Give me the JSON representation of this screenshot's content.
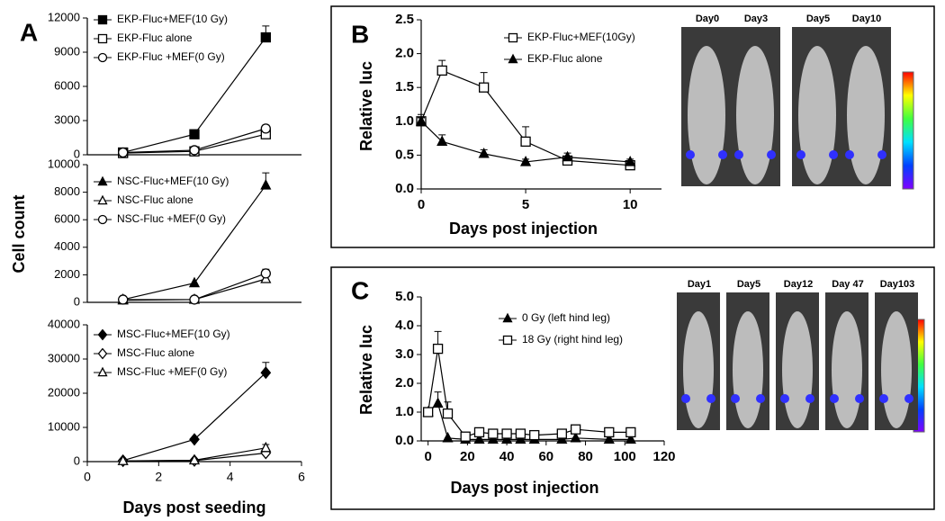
{
  "chart_data": [
    {
      "type": "line",
      "panel": "A",
      "xlim": [
        0,
        6
      ],
      "ylim": [
        0,
        12000
      ],
      "yticks": [
        0,
        3000,
        6000,
        9000,
        12000
      ],
      "x": [
        1,
        3,
        5
      ],
      "series": [
        {
          "name": "EKP-Fluc+MEF(10 Gy)",
          "color": "#000000",
          "marker": "square",
          "filled": true,
          "values": [
            200,
            1800,
            10300
          ],
          "errors": [
            null,
            null,
            1000
          ]
        },
        {
          "name": "EKP-Fluc alone",
          "color": "#000000",
          "marker": "square",
          "filled": false,
          "values": [
            150,
            300,
            1800
          ],
          "errors": [
            null,
            null,
            300
          ]
        },
        {
          "name": "EKP-Fluc +MEF(0 Gy)",
          "color": "#000000",
          "marker": "circle",
          "filled": false,
          "values": [
            200,
            400,
            2300
          ],
          "errors": [
            null,
            null,
            300
          ]
        }
      ]
    },
    {
      "type": "line",
      "xlim": [
        0,
        6
      ],
      "ylim": [
        0,
        10000
      ],
      "yticks": [
        0,
        2000,
        4000,
        6000,
        8000,
        10000
      ],
      "x": [
        1,
        3,
        5
      ],
      "ylabel": "Cell count",
      "series": [
        {
          "name": "NSC-Fluc+MEF(10 Gy)",
          "color": "#000000",
          "marker": "triangle",
          "filled": true,
          "values": [
            200,
            1400,
            8500
          ],
          "errors": [
            null,
            null,
            900
          ]
        },
        {
          "name": "NSC-Fluc alone",
          "color": "#000000",
          "marker": "triangle",
          "filled": false,
          "values": [
            150,
            200,
            1700
          ],
          "errors": [
            null,
            null,
            300
          ]
        },
        {
          "name": "NSC-Fluc +MEF(0 Gy)",
          "color": "#000000",
          "marker": "circle",
          "filled": false,
          "values": [
            200,
            200,
            2100
          ],
          "errors": [
            null,
            null,
            300
          ]
        }
      ]
    },
    {
      "type": "line",
      "xlim": [
        0,
        6
      ],
      "ylim": [
        0,
        40000
      ],
      "yticks": [
        0,
        10000,
        20000,
        30000,
        40000
      ],
      "xticks": [
        0,
        2,
        4,
        6
      ],
      "x": [
        1,
        3,
        5
      ],
      "xlabel": "Days post seeding",
      "series": [
        {
          "name": "MSC-Fluc+MEF(10 Gy)",
          "color": "#000000",
          "marker": "diamond",
          "filled": true,
          "values": [
            300,
            6500,
            26000
          ],
          "errors": [
            null,
            null,
            3000
          ]
        },
        {
          "name": "MSC-Fluc alone",
          "color": "#000000",
          "marker": "diamond",
          "filled": false,
          "values": [
            200,
            300,
            2500
          ],
          "errors": [
            null,
            null,
            800
          ]
        },
        {
          "name": "MSC-Fluc +MEF(0 Gy)",
          "color": "#000000",
          "marker": "triangle",
          "filled": false,
          "values": [
            200,
            400,
            4000
          ],
          "errors": [
            null,
            null,
            1000
          ]
        }
      ]
    },
    {
      "type": "line",
      "panel": "B",
      "xlim": [
        0,
        11.5
      ],
      "ylim": [
        0,
        2.5
      ],
      "xticks": [
        0,
        5,
        10
      ],
      "yticks": [
        {
          "value": 0,
          "label": "0.0"
        },
        {
          "value": 0.5,
          "label": "0.5"
        },
        {
          "value": 1,
          "label": "1.0"
        },
        {
          "value": 1.5,
          "label": "1.5"
        },
        {
          "value": 2,
          "label": "2.0"
        },
        {
          "value": 2.5,
          "label": "2.5"
        }
      ],
      "xlabel": "Days post injection",
      "ylabel": "Relative luc",
      "x": [
        0,
        1,
        3,
        5,
        7,
        10
      ],
      "series": [
        {
          "name": "EKP-Fluc+MEF(10Gy)",
          "color": "#000000",
          "marker": "square",
          "filled": false,
          "values": [
            1.0,
            1.75,
            1.5,
            0.7,
            0.42,
            0.35
          ],
          "errors": [
            0.1,
            0.15,
            0.22,
            0.22,
            0.05,
            0.05
          ]
        },
        {
          "name": "EKP-Fluc alone",
          "color": "#000000",
          "marker": "triangle",
          "filled": true,
          "values": [
            1.0,
            0.7,
            0.52,
            0.4,
            0.47,
            0.4
          ],
          "errors": [
            0.05,
            0.1,
            0.06,
            0.04,
            0.06,
            0.04
          ]
        }
      ],
      "images": [
        "Day0",
        "Day3",
        "Day5",
        "Day10"
      ]
    },
    {
      "type": "line",
      "panel": "C",
      "xlim": [
        -3.5,
        120
      ],
      "ylim": [
        0,
        5
      ],
      "xticks": [
        0,
        20,
        40,
        60,
        80,
        100,
        120
      ],
      "yticks": [
        {
          "value": 0,
          "label": "0.0"
        },
        {
          "value": 1,
          "label": "1.0"
        },
        {
          "value": 2,
          "label": "2.0"
        },
        {
          "value": 3,
          "label": "3.0"
        },
        {
          "value": 4,
          "label": "4.0"
        },
        {
          "value": 5,
          "label": "5.0"
        }
      ],
      "xlabel": "Days post injection",
      "ylabel": "Relative luc",
      "x": [
        0,
        5,
        10,
        19,
        26,
        33,
        40,
        47,
        54,
        68,
        75,
        92,
        103
      ],
      "series": [
        {
          "name": "0 Gy (left hind leg)",
          "color": "#000000",
          "marker": "triangle",
          "filled": true,
          "values": [
            1.0,
            1.3,
            0.1,
            0.05,
            0.05,
            0.05,
            0.05,
            0.05,
            0.05,
            0.05,
            0.1,
            0.05,
            0.05
          ],
          "errors": [
            null,
            0.4,
            null,
            null,
            null,
            null,
            null,
            null,
            null,
            null,
            null,
            null,
            null
          ]
        },
        {
          "name": "18 Gy (right hind leg)",
          "color": "#000000",
          "marker": "square",
          "filled": false,
          "values": [
            1.0,
            3.2,
            0.95,
            0.15,
            0.3,
            0.25,
            0.25,
            0.25,
            0.2,
            0.25,
            0.4,
            0.3,
            0.3
          ],
          "errors": [
            null,
            0.6,
            0.4,
            null,
            null,
            null,
            null,
            null,
            null,
            null,
            null,
            null,
            null
          ]
        }
      ],
      "images": [
        "Day1",
        "Day5",
        "Day12",
        "Day 47",
        "Day103"
      ]
    }
  ]
}
